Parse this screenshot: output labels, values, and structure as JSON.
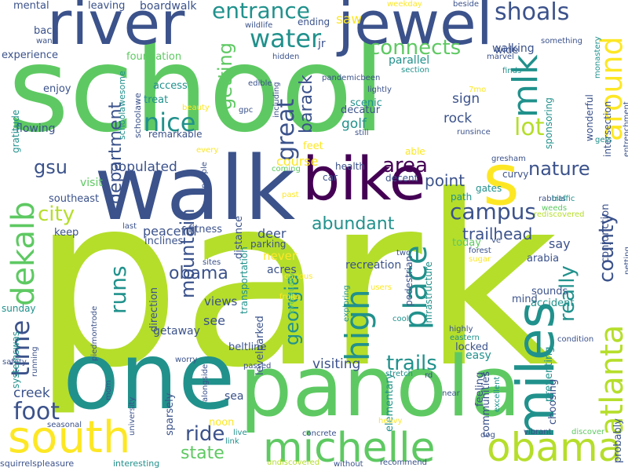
{
  "palette": {
    "background": "#ffffff",
    "dark_purple": "#440154",
    "indigo": "#3b528b",
    "teal": "#21918c",
    "green": "#5ec962",
    "lime": "#b5de2b",
    "yellow": "#fde725"
  },
  "words": [
    {
      "text": "park",
      "color": "#b5de2b",
      "vertical": false
    },
    {
      "text": "school",
      "color": "#5ec962",
      "vertical": false
    },
    {
      "text": "walk",
      "color": "#3b528b",
      "vertical": false
    },
    {
      "text": "panola",
      "color": "#5ec962",
      "vertical": false
    },
    {
      "text": "one",
      "color": "#21918c",
      "vertical": false
    },
    {
      "text": "river",
      "color": "#3b528b",
      "vertical": false
    },
    {
      "text": "jewel",
      "color": "#3b528b",
      "vertical": false
    },
    {
      "text": "bike",
      "color": "#440154",
      "vertical": false
    },
    {
      "text": "miles",
      "color": "#21918c",
      "vertical": true
    },
    {
      "text": "south",
      "color": "#fde725",
      "vertical": false
    },
    {
      "text": "michelle",
      "color": "#5ec962",
      "vertical": false
    },
    {
      "text": "obama",
      "color": "#b5de2b",
      "vertical": false
    },
    {
      "text": "s",
      "color": "#fde725",
      "vertical": false
    },
    {
      "text": "atlanta",
      "color": "#b5de2b",
      "vertical": true
    },
    {
      "text": "around",
      "color": "#fde725",
      "vertical": true
    },
    {
      "text": "dekalb",
      "color": "#5ec962",
      "vertical": true
    },
    {
      "text": "water",
      "color": "#21918c",
      "vertical": false
    },
    {
      "text": "high",
      "color": "#21918c",
      "vertical": true
    },
    {
      "text": "entrance",
      "color": "#21918c",
      "vertical": false
    },
    {
      "text": "shoals",
      "color": "#3b528b",
      "vertical": false
    },
    {
      "text": "mlk",
      "color": "#21918c",
      "vertical": true
    },
    {
      "text": "nice",
      "color": "#21918c",
      "vertical": false
    },
    {
      "text": "lot",
      "color": "#b5de2b",
      "vertical": false
    },
    {
      "text": "campus",
      "color": "#3b528b",
      "vertical": false
    },
    {
      "text": "area",
      "color": "#440154",
      "vertical": false
    },
    {
      "text": "place",
      "color": "#21918c",
      "vertical": true
    },
    {
      "text": "great",
      "color": "#3b528b",
      "vertical": true
    },
    {
      "text": "time",
      "color": "#3b528b",
      "vertical": true
    },
    {
      "text": "foot",
      "color": "#3b528b",
      "vertical": false
    },
    {
      "text": "city",
      "color": "#b5de2b",
      "vertical": false
    },
    {
      "text": "connects",
      "color": "#5ec962",
      "vertical": false
    },
    {
      "text": "runs",
      "color": "#21918c",
      "vertical": true
    },
    {
      "text": "ride",
      "color": "#3b528b",
      "vertical": false
    },
    {
      "text": "trails",
      "color": "#21918c",
      "vertical": false
    },
    {
      "text": "county",
      "color": "#3b528b",
      "vertical": true
    },
    {
      "text": "really",
      "color": "#21918c",
      "vertical": true
    },
    {
      "text": "abundant",
      "color": "#21918c",
      "vertical": false
    },
    {
      "text": "nature",
      "color": "#3b528b",
      "vertical": false
    },
    {
      "text": "mountain",
      "color": "#3b528b",
      "vertical": true
    },
    {
      "text": "georgia",
      "color": "#21918c",
      "vertical": true
    },
    {
      "text": "barack",
      "color": "#3b528b",
      "vertical": true
    },
    {
      "text": "getting",
      "color": "#5ec962",
      "vertical": true
    },
    {
      "text": "department",
      "color": "#3b528b",
      "vertical": true
    },
    {
      "text": "gsu",
      "color": "#3b528b",
      "vertical": false
    },
    {
      "text": "obama",
      "color": "#3b528b",
      "vertical": false
    },
    {
      "text": "state",
      "color": "#5ec962",
      "vertical": false
    },
    {
      "text": "trailhead",
      "color": "#3b528b",
      "vertical": false
    },
    {
      "text": "point",
      "color": "#3b528b",
      "vertical": false
    },
    {
      "text": "populated",
      "color": "#3b528b",
      "vertical": false
    },
    {
      "text": "visiting",
      "color": "#3b528b",
      "vertical": false
    },
    {
      "text": "creek",
      "color": "#3b528b",
      "vertical": false
    },
    {
      "text": "golf",
      "color": "#21918c",
      "vertical": false
    },
    {
      "text": "rock",
      "color": "#3b528b",
      "vertical": false
    },
    {
      "text": "sign",
      "color": "#3b528b",
      "vertical": false
    },
    {
      "text": "course",
      "color": "#fde725",
      "vertical": false
    },
    {
      "text": "deer",
      "color": "#3b528b",
      "vertical": false
    },
    {
      "text": "peaceful",
      "color": "#3b528b",
      "vertical": false
    },
    {
      "text": "recreation",
      "color": "#3b528b",
      "vertical": false
    },
    {
      "text": "say",
      "color": "#3b528b",
      "vertical": false
    },
    {
      "text": "never",
      "color": "#fde725",
      "vertical": false
    },
    {
      "text": "acres",
      "color": "#3b528b",
      "vertical": false
    },
    {
      "text": "walking",
      "color": "#3b528b",
      "vertical": false
    },
    {
      "text": "boardwalk",
      "color": "#3b528b",
      "vertical": false
    },
    {
      "text": "leaving",
      "color": "#3b528b",
      "vertical": false
    },
    {
      "text": "mental",
      "color": "#3b528b",
      "vertical": false
    },
    {
      "text": "back",
      "color": "#3b528b",
      "vertical": false
    },
    {
      "text": "experience",
      "color": "#3b528b",
      "vertical": false
    },
    {
      "text": "foundation",
      "color": "#5ec962",
      "vertical": false
    },
    {
      "text": "parallel",
      "color": "#21918c",
      "vertical": false
    },
    {
      "text": "wide",
      "color": "#3b528b",
      "vertical": false
    },
    {
      "text": "saw",
      "color": "#fde725",
      "vertical": false
    },
    {
      "text": "jr",
      "color": "#3b528b",
      "vertical": false
    },
    {
      "text": "ending",
      "color": "#3b528b",
      "vertical": false
    },
    {
      "text": "enjoy",
      "color": "#3b528b",
      "vertical": false
    },
    {
      "text": "access",
      "color": "#21918c",
      "vertical": false
    },
    {
      "text": "treat",
      "color": "#21918c",
      "vertical": false
    },
    {
      "text": "remarkable",
      "color": "#3b528b",
      "vertical": false
    },
    {
      "text": "flowing",
      "color": "#3b528b",
      "vertical": false
    },
    {
      "text": "scenic",
      "color": "#21918c",
      "vertical": false
    },
    {
      "text": "decatur",
      "color": "#3b528b",
      "vertical": false
    },
    {
      "text": "feet",
      "color": "#fde725",
      "vertical": false
    },
    {
      "text": "able",
      "color": "#fde725",
      "vertical": false
    },
    {
      "text": "health",
      "color": "#3b528b",
      "vertical": false
    },
    {
      "text": "car",
      "color": "#3b528b",
      "vertical": false
    },
    {
      "text": "decent",
      "color": "#3b528b",
      "vertical": false
    },
    {
      "text": "visit",
      "color": "#5ec962",
      "vertical": false
    },
    {
      "text": "southeast",
      "color": "#3b528b",
      "vertical": false
    },
    {
      "text": "path",
      "color": "#21918c",
      "vertical": false
    },
    {
      "text": "gates",
      "color": "#21918c",
      "vertical": false
    },
    {
      "text": "curvy",
      "color": "#3b528b",
      "vertical": false
    },
    {
      "text": "keep",
      "color": "#3b528b",
      "vertical": false
    },
    {
      "text": "fitness",
      "color": "#3b528b",
      "vertical": false
    },
    {
      "text": "inclines",
      "color": "#3b528b",
      "vertical": false
    },
    {
      "text": "parking",
      "color": "#3b528b",
      "vertical": false
    },
    {
      "text": "today",
      "color": "#5ec962",
      "vertical": false
    },
    {
      "text": "sounds",
      "color": "#3b528b",
      "vertical": false
    },
    {
      "text": "mind",
      "color": "#3b528b",
      "vertical": false
    },
    {
      "text": "accident",
      "color": "#21918c",
      "vertical": false
    },
    {
      "text": "arabia",
      "color": "#3b528b",
      "vertical": false
    },
    {
      "text": "views",
      "color": "#3b528b",
      "vertical": false
    },
    {
      "text": "see",
      "color": "#3b528b",
      "vertical": false
    },
    {
      "text": "sunday",
      "color": "#21918c",
      "vertical": false
    },
    {
      "text": "getaway",
      "color": "#3b528b",
      "vertical": false
    },
    {
      "text": "beltline",
      "color": "#3b528b",
      "vertical": false
    },
    {
      "text": "sea",
      "color": "#3b528b",
      "vertical": false
    },
    {
      "text": "noon",
      "color": "#fde725",
      "vertical": false
    },
    {
      "text": "locked",
      "color": "#3b528b",
      "vertical": false
    },
    {
      "text": "easy",
      "color": "#21918c",
      "vertical": false
    },
    {
      "text": "levelparked",
      "color": "#3b528b",
      "vertical": true
    },
    {
      "text": "distance",
      "color": "#3b528b",
      "vertical": true
    },
    {
      "text": "transportation",
      "color": "#21918c",
      "vertical": true
    },
    {
      "text": "infrastructure",
      "color": "#21918c",
      "vertical": true
    },
    {
      "text": "elementary",
      "color": "#21918c",
      "vertical": true
    },
    {
      "text": "pedestrian",
      "color": "#3b528b",
      "vertical": true
    },
    {
      "text": "communities",
      "color": "#3b528b",
      "vertical": true
    },
    {
      "text": "choosing",
      "color": "#3b528b",
      "vertical": true
    },
    {
      "text": "feeling",
      "color": "#3b528b",
      "vertical": true
    },
    {
      "text": "preventing",
      "color": "#21918c",
      "vertical": true
    },
    {
      "text": "sponsoring",
      "color": "#21918c",
      "vertical": true
    },
    {
      "text": "wonderful",
      "color": "#3b528b",
      "vertical": true
    },
    {
      "text": "intersection",
      "color": "#3b528b",
      "vertical": true
    },
    {
      "text": "conjunction",
      "color": "#3b528b",
      "vertical": true
    },
    {
      "text": "probably",
      "color": "#3b528b",
      "vertical": true
    },
    {
      "text": "direction",
      "color": "#3b528b",
      "vertical": true
    },
    {
      "text": "sparsely",
      "color": "#3b528b",
      "vertical": true
    },
    {
      "text": "systemswas",
      "color": "#21918c",
      "vertical": true
    },
    {
      "text": "gratitude",
      "color": "#21918c",
      "vertical": true
    },
    {
      "text": "schoolawesome",
      "color": "#21918c",
      "vertical": true
    },
    {
      "text": "schoolawe",
      "color": "#3b528b",
      "vertical": true
    },
    {
      "text": "squirrelspleasure",
      "color": "#3b528b",
      "vertical": false
    },
    {
      "text": "interesting",
      "color": "#21918c",
      "vertical": false
    },
    {
      "text": "undiscovered",
      "color": "#b5de2b",
      "vertical": false
    },
    {
      "text": "without",
      "color": "#3b528b",
      "vertical": false
    },
    {
      "text": "recommend",
      "color": "#3b528b",
      "vertical": false
    },
    {
      "text": "heavy",
      "color": "#fde725",
      "vertical": false
    },
    {
      "text": "vibrant",
      "color": "#3b528b",
      "vertical": false
    },
    {
      "text": "discover",
      "color": "#5ec962",
      "vertical": false
    },
    {
      "text": "dog",
      "color": "#3b528b",
      "vertical": false
    },
    {
      "text": "live",
      "color": "#21918c",
      "vertical": false
    },
    {
      "text": "link",
      "color": "#21918c",
      "vertical": false
    },
    {
      "text": "concrete",
      "color": "#3b528b",
      "vertical": false
    },
    {
      "text": "near",
      "color": "#3b528b",
      "vertical": false
    },
    {
      "text": "passed",
      "color": "#3b528b",
      "vertical": false
    },
    {
      "text": "rd",
      "color": "#3b528b",
      "vertical": false
    },
    {
      "text": "stretch",
      "color": "#21918c",
      "vertical": false
    },
    {
      "text": "cool",
      "color": "#21918c",
      "vertical": false
    },
    {
      "text": "highly",
      "color": "#3b528b",
      "vertical": false
    },
    {
      "text": "eastern",
      "color": "#21918c",
      "vertical": false
    },
    {
      "text": "condition",
      "color": "#3b528b",
      "vertical": false
    },
    {
      "text": "sugar",
      "color": "#fde725",
      "vertical": false
    },
    {
      "text": "forest",
      "color": "#3b528b",
      "vertical": false
    },
    {
      "text": "ve",
      "color": "#3b528b",
      "vertical": false
    },
    {
      "text": "rediscovered",
      "color": "#b5de2b",
      "vertical": false
    },
    {
      "text": "rabbits",
      "color": "#3b528b",
      "vertical": false
    },
    {
      "text": "weeds",
      "color": "#5ec962",
      "vertical": false
    },
    {
      "text": "traffic",
      "color": "#21918c",
      "vertical": false
    },
    {
      "text": "gresham",
      "color": "#3b528b",
      "vertical": false
    },
    {
      "text": "runsince",
      "color": "#3b528b",
      "vertical": false
    },
    {
      "text": "still",
      "color": "#3b528b",
      "vertical": false
    },
    {
      "text": "lightly",
      "color": "#3b528b",
      "vertical": false
    },
    {
      "text": "7mo",
      "color": "#fde725",
      "vertical": false
    },
    {
      "text": "finds",
      "color": "#21918c",
      "vertical": false
    },
    {
      "text": "section",
      "color": "#21918c",
      "vertical": false
    },
    {
      "text": "pandemicbeen",
      "color": "#3b528b",
      "vertical": false
    },
    {
      "text": "hidden",
      "color": "#3b528b",
      "vertical": false
    },
    {
      "text": "marvel",
      "color": "#3b528b",
      "vertical": false
    },
    {
      "text": "something",
      "color": "#3b528b",
      "vertical": false
    },
    {
      "text": "want",
      "color": "#3b528b",
      "vertical": false
    },
    {
      "text": "wildlife",
      "color": "#3b528b",
      "vertical": false
    },
    {
      "text": "weekday",
      "color": "#fde725",
      "vertical": false
    },
    {
      "text": "beside",
      "color": "#3b528b",
      "vertical": false
    },
    {
      "text": "monastery",
      "color": "#21918c",
      "vertical": true
    },
    {
      "text": "entrenchment",
      "color": "#3b528b",
      "vertical": true
    },
    {
      "text": "gets",
      "color": "#21918c",
      "vertical": false
    },
    {
      "text": "netting",
      "color": "#3b528b",
      "vertical": true
    },
    {
      "text": "edible",
      "color": "#3b528b",
      "vertical": false
    },
    {
      "text": "gpc",
      "color": "#3b528b",
      "vertical": false
    },
    {
      "text": "including",
      "color": "#3b528b",
      "vertical": true
    },
    {
      "text": "beauty",
      "color": "#fde725",
      "vertical": false
    },
    {
      "text": "every",
      "color": "#fde725",
      "vertical": false
    },
    {
      "text": "people",
      "color": "#3b528b",
      "vertical": true
    },
    {
      "text": "coming",
      "color": "#5ec962",
      "vertical": false
    },
    {
      "text": "past",
      "color": "#fde725",
      "vertical": false
    },
    {
      "text": "last",
      "color": "#3b528b",
      "vertical": false
    },
    {
      "text": "sites",
      "color": "#3b528b",
      "vertical": false
    },
    {
      "text": "curious",
      "color": "#fde725",
      "vertical": false
    },
    {
      "text": "eventually",
      "color": "#5ec962",
      "vertical": true
    },
    {
      "text": "fruits",
      "color": "#fde725",
      "vertical": false
    },
    {
      "text": "two",
      "color": "#3b528b",
      "vertical": false
    },
    {
      "text": "users",
      "color": "#fde725",
      "vertical": false
    },
    {
      "text": "exploring",
      "color": "#21918c",
      "vertical": true
    },
    {
      "text": "piedmontrode",
      "color": "#3b528b",
      "vertical": true
    },
    {
      "text": "worry",
      "color": "#3b528b",
      "vertical": false
    },
    {
      "text": "running",
      "color": "#3b528b",
      "vertical": true
    },
    {
      "text": "safety",
      "color": "#3b528b",
      "vertical": false
    },
    {
      "text": "mom",
      "color": "#3b528b",
      "vertical": true
    },
    {
      "text": "university",
      "color": "#3b528b",
      "vertical": true
    },
    {
      "text": "alongside",
      "color": "#3b528b",
      "vertical": true
    },
    {
      "text": "seasonal",
      "color": "#3b528b",
      "vertical": false
    },
    {
      "text": "excellent",
      "color": "#21918c",
      "vertical": true
    }
  ]
}
